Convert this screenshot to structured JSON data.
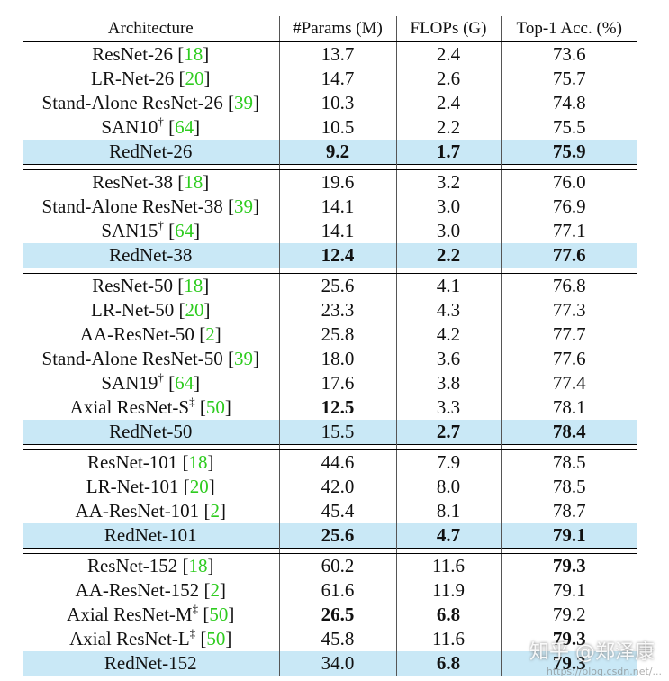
{
  "table": {
    "headers": [
      "Architecture",
      "#Params (M)",
      "FLOPs (G)",
      "Top-1 Acc. (%)"
    ],
    "groups": [
      {
        "rows": [
          {
            "name": "ResNet-26",
            "sup": "",
            "cite": "18",
            "params": "13.7",
            "flops": "2.4",
            "acc": "73.6"
          },
          {
            "name": "LR-Net-26",
            "sup": "",
            "cite": "20",
            "params": "14.7",
            "flops": "2.6",
            "acc": "75.7"
          },
          {
            "name": "Stand-Alone ResNet-26",
            "sup": "",
            "cite": "39",
            "params": "10.3",
            "flops": "2.4",
            "acc": "74.8"
          },
          {
            "name": "SAN10",
            "sup": "†",
            "cite": "64",
            "params": "10.5",
            "flops": "2.2",
            "acc": "75.5"
          },
          {
            "name": "RedNet-26",
            "sup": "",
            "cite": "",
            "params": "9.2",
            "flops": "1.7",
            "acc": "75.9",
            "highlight": true,
            "bold": [
              "params",
              "flops",
              "acc"
            ]
          }
        ]
      },
      {
        "rows": [
          {
            "name": "ResNet-38",
            "sup": "",
            "cite": "18",
            "params": "19.6",
            "flops": "3.2",
            "acc": "76.0"
          },
          {
            "name": "Stand-Alone ResNet-38",
            "sup": "",
            "cite": "39",
            "params": "14.1",
            "flops": "3.0",
            "acc": "76.9"
          },
          {
            "name": "SAN15",
            "sup": "†",
            "cite": "64",
            "params": "14.1",
            "flops": "3.0",
            "acc": "77.1"
          },
          {
            "name": "RedNet-38",
            "sup": "",
            "cite": "",
            "params": "12.4",
            "flops": "2.2",
            "acc": "77.6",
            "highlight": true,
            "bold": [
              "params",
              "flops",
              "acc"
            ]
          }
        ]
      },
      {
        "rows": [
          {
            "name": "ResNet-50",
            "sup": "",
            "cite": "18",
            "params": "25.6",
            "flops": "4.1",
            "acc": "76.8"
          },
          {
            "name": "LR-Net-50",
            "sup": "",
            "cite": "20",
            "params": "23.3",
            "flops": "4.3",
            "acc": "77.3"
          },
          {
            "name": "AA-ResNet-50",
            "sup": "",
            "cite": "2",
            "params": "25.8",
            "flops": "4.2",
            "acc": "77.7"
          },
          {
            "name": "Stand-Alone ResNet-50",
            "sup": "",
            "cite": "39",
            "params": "18.0",
            "flops": "3.6",
            "acc": "77.6"
          },
          {
            "name": "SAN19",
            "sup": "†",
            "cite": "64",
            "params": "17.6",
            "flops": "3.8",
            "acc": "77.4"
          },
          {
            "name": "Axial ResNet-S",
            "sup": "‡",
            "cite": "50",
            "params": "12.5",
            "flops": "3.3",
            "acc": "78.1",
            "bold": [
              "params"
            ]
          },
          {
            "name": "RedNet-50",
            "sup": "",
            "cite": "",
            "params": "15.5",
            "flops": "2.7",
            "acc": "78.4",
            "highlight": true,
            "bold": [
              "flops",
              "acc"
            ]
          }
        ]
      },
      {
        "rows": [
          {
            "name": "ResNet-101",
            "sup": "",
            "cite": "18",
            "params": "44.6",
            "flops": "7.9",
            "acc": "78.5"
          },
          {
            "name": "LR-Net-101",
            "sup": "",
            "cite": "20",
            "params": "42.0",
            "flops": "8.0",
            "acc": "78.5"
          },
          {
            "name": "AA-ResNet-101",
            "sup": "",
            "cite": "2",
            "params": "45.4",
            "flops": "8.1",
            "acc": "78.7"
          },
          {
            "name": "RedNet-101",
            "sup": "",
            "cite": "",
            "params": "25.6",
            "flops": "4.7",
            "acc": "79.1",
            "highlight": true,
            "bold": [
              "params",
              "flops",
              "acc"
            ]
          }
        ]
      },
      {
        "rows": [
          {
            "name": "ResNet-152",
            "sup": "",
            "cite": "18",
            "params": "60.2",
            "flops": "11.6",
            "acc": "79.3",
            "bold": [
              "acc"
            ]
          },
          {
            "name": "AA-ResNet-152",
            "sup": "",
            "cite": "2",
            "params": "61.6",
            "flops": "11.9",
            "acc": "79.1"
          },
          {
            "name": "Axial ResNet-M",
            "sup": "‡",
            "cite": "50",
            "params": "26.5",
            "flops": "6.8",
            "acc": "79.2",
            "bold": [
              "params",
              "flops"
            ]
          },
          {
            "name": "Axial ResNet-L",
            "sup": "‡",
            "cite": "50",
            "params": "45.8",
            "flops": "11.6",
            "acc": "79.3",
            "bold": [
              "acc"
            ]
          },
          {
            "name": "RedNet-152",
            "sup": "",
            "cite": "",
            "params": "34.0",
            "flops": "6.8",
            "acc": "79.3",
            "highlight": true,
            "bold": [
              "flops",
              "acc"
            ]
          }
        ]
      }
    ]
  },
  "watermark": {
    "text": "知乎 @郑泽康",
    "url": "https://blog.csdn.net/..."
  },
  "colors": {
    "highlight": "#c9e8f6",
    "citation": "#2ecc1f"
  }
}
